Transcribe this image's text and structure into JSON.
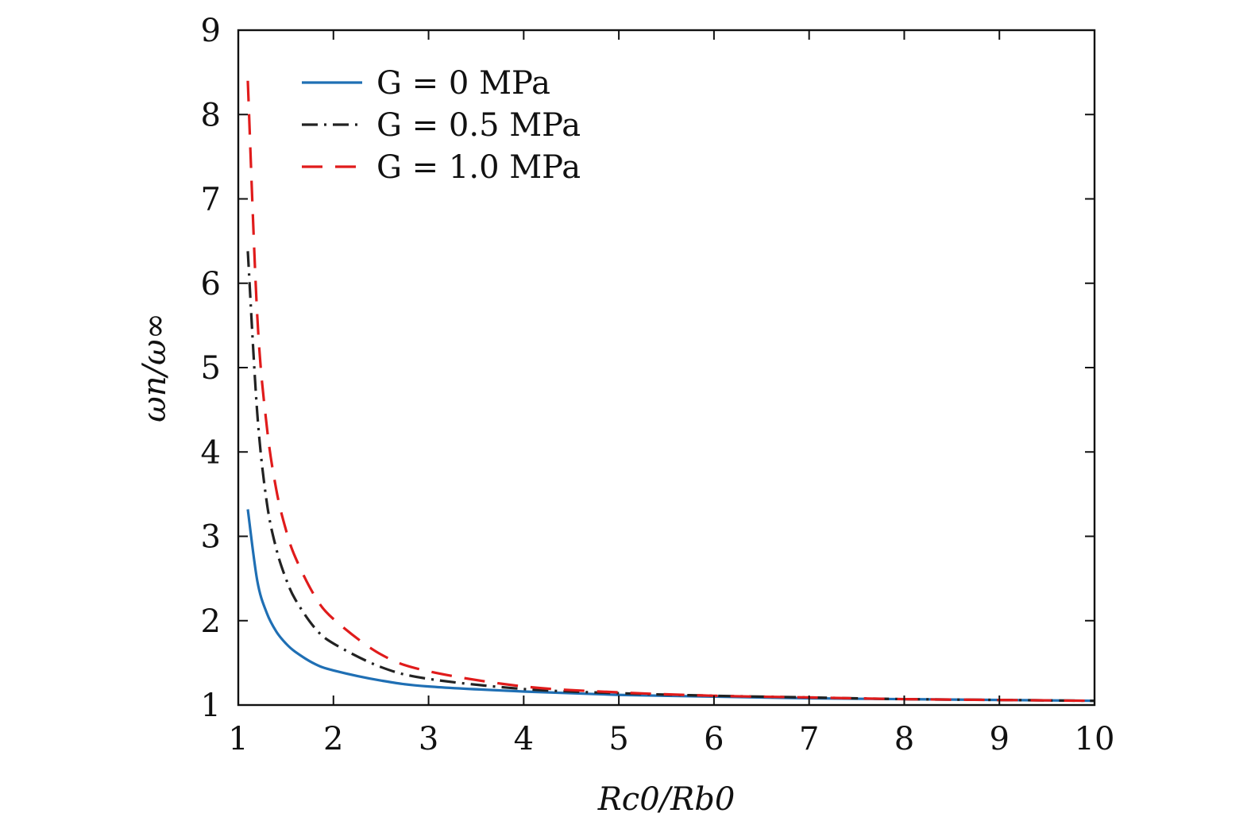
{
  "chart_data": {
    "type": "line",
    "title": "",
    "xlabel": "Rc0/Rb0",
    "ylabel": "ωn/ω∞",
    "xlim": [
      1,
      10
    ],
    "ylim": [
      1,
      9
    ],
    "xticks": [
      1,
      2,
      3,
      4,
      5,
      6,
      7,
      8,
      9,
      10
    ],
    "yticks": [
      1,
      2,
      3,
      4,
      5,
      6,
      7,
      8,
      9
    ],
    "xtick_labels": [
      "1",
      "2",
      "3",
      "4",
      "5",
      "6",
      "7",
      "8",
      "9",
      "10"
    ],
    "ytick_labels": [
      "1",
      "2",
      "3",
      "4",
      "5",
      "6",
      "7",
      "8",
      "9"
    ],
    "grid": false,
    "legend_position": "top-left",
    "series": [
      {
        "name": "G = 0 MPa",
        "color": "#1f6fb4",
        "style": "solid",
        "x": [
          1.1,
          1.2,
          1.3,
          1.4,
          1.5,
          1.6,
          1.8,
          2.0,
          2.5,
          3.0,
          4.0,
          5.0,
          6.0,
          7.0,
          8.0,
          9.0,
          10.0
        ],
        "y": [
          3.32,
          2.47,
          2.09,
          1.87,
          1.73,
          1.63,
          1.49,
          1.41,
          1.29,
          1.22,
          1.16,
          1.12,
          1.1,
          1.08,
          1.07,
          1.06,
          1.05
        ]
      },
      {
        "name": "G = 0.5 MPa",
        "color": "#222222",
        "style": "dashdot",
        "x": [
          1.1,
          1.2,
          1.3,
          1.4,
          1.5,
          1.6,
          1.8,
          2.0,
          2.5,
          3.0,
          4.0,
          5.0,
          6.0,
          7.0,
          8.0,
          9.0,
          10.0
        ],
        "y": [
          6.38,
          4.45,
          3.4,
          2.85,
          2.5,
          2.25,
          1.92,
          1.73,
          1.45,
          1.31,
          1.19,
          1.14,
          1.11,
          1.09,
          1.07,
          1.06,
          1.05
        ]
      },
      {
        "name": "G = 1.0 MPa",
        "color": "#e01b1b",
        "style": "dashed",
        "x": [
          1.1,
          1.2,
          1.3,
          1.4,
          1.5,
          1.6,
          1.8,
          2.0,
          2.5,
          3.0,
          4.0,
          5.0,
          6.0,
          7.0,
          8.0,
          9.0,
          10.0
        ],
        "y": [
          8.4,
          5.6,
          4.3,
          3.55,
          3.08,
          2.75,
          2.3,
          2.02,
          1.6,
          1.4,
          1.22,
          1.15,
          1.11,
          1.09,
          1.07,
          1.06,
          1.05
        ]
      }
    ]
  }
}
